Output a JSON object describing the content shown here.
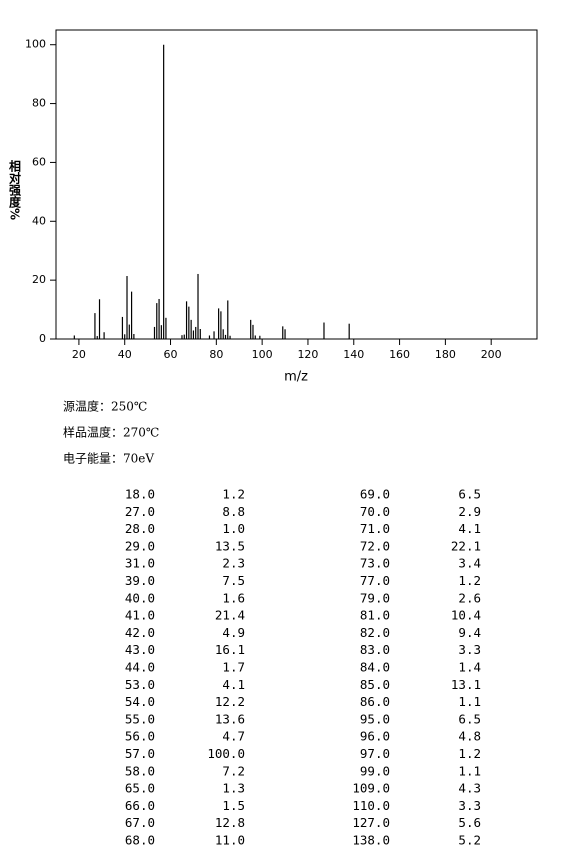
{
  "chart_data": {
    "type": "bar",
    "xlabel": "m/z",
    "ylabel": "相对强度%",
    "color": "#000000",
    "x": [
      18,
      27,
      28,
      29,
      31,
      39,
      40,
      41,
      42,
      43,
      44,
      53,
      54,
      55,
      56,
      57,
      58,
      65,
      66,
      67,
      68,
      69,
      70,
      71,
      72,
      73,
      77,
      79,
      81,
      82,
      83,
      84,
      85,
      86,
      95,
      96,
      97,
      99,
      109,
      110,
      127,
      138
    ],
    "values": [
      1.2,
      8.8,
      1.0,
      13.5,
      2.3,
      7.5,
      1.6,
      21.4,
      4.9,
      16.1,
      1.7,
      4.1,
      12.2,
      13.6,
      4.7,
      100.0,
      7.2,
      1.3,
      1.5,
      12.8,
      11.0,
      6.5,
      2.9,
      4.1,
      22.1,
      3.4,
      1.2,
      2.6,
      10.4,
      9.4,
      3.3,
      1.4,
      13.1,
      1.1,
      6.5,
      4.8,
      1.2,
      1.1,
      4.3,
      3.3,
      5.6,
      5.2
    ],
    "xlim": [
      10,
      220
    ],
    "xticks": [
      20,
      40,
      60,
      80,
      100,
      120,
      140,
      160,
      180,
      200
    ],
    "ylim": [
      0,
      105
    ],
    "yticks": [
      0,
      20,
      40,
      60,
      80,
      100
    ]
  },
  "info": [
    "源温度：250℃",
    "样品温度：270℃",
    "电子能量：70eV"
  ],
  "table": {
    "rows": [
      [
        "18.0",
        "1.2",
        "69.0",
        "6.5"
      ],
      [
        "27.0",
        "8.8",
        "70.0",
        "2.9"
      ],
      [
        "28.0",
        "1.0",
        "71.0",
        "4.1"
      ],
      [
        "29.0",
        "13.5",
        "72.0",
        "22.1"
      ],
      [
        "31.0",
        "2.3",
        "73.0",
        "3.4"
      ],
      [
        "39.0",
        "7.5",
        "77.0",
        "1.2"
      ],
      [
        "40.0",
        "1.6",
        "79.0",
        "2.6"
      ],
      [
        "41.0",
        "21.4",
        "81.0",
        "10.4"
      ],
      [
        "42.0",
        "4.9",
        "82.0",
        "9.4"
      ],
      [
        "43.0",
        "16.1",
        "83.0",
        "3.3"
      ],
      [
        "44.0",
        "1.7",
        "84.0",
        "1.4"
      ],
      [
        "53.0",
        "4.1",
        "85.0",
        "13.1"
      ],
      [
        "54.0",
        "12.2",
        "86.0",
        "1.1"
      ],
      [
        "55.0",
        "13.6",
        "95.0",
        "6.5"
      ],
      [
        "56.0",
        "4.7",
        "96.0",
        "4.8"
      ],
      [
        "57.0",
        "100.0",
        "97.0",
        "1.2"
      ],
      [
        "58.0",
        "7.2",
        "99.0",
        "1.1"
      ],
      [
        "65.0",
        "1.3",
        "109.0",
        "4.3"
      ],
      [
        "66.0",
        "1.5",
        "110.0",
        "3.3"
      ],
      [
        "67.0",
        "12.8",
        "127.0",
        "5.6"
      ],
      [
        "68.0",
        "11.0",
        "138.0",
        "5.2"
      ]
    ]
  }
}
